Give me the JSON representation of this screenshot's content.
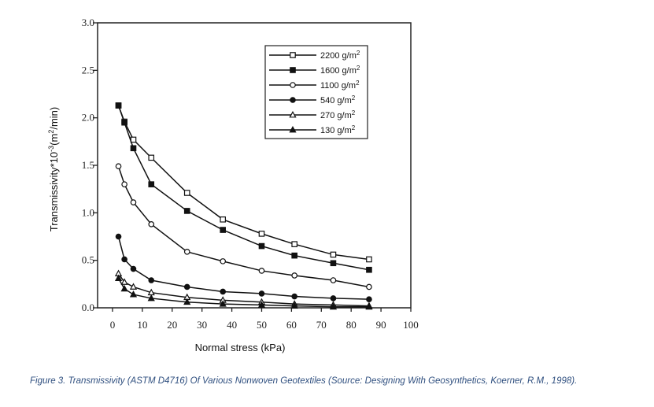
{
  "chart_data": {
    "type": "line",
    "xlabel": "Normal stress (kPa)",
    "ylabel": "Transmissivity*10",
    "ylabel_exp": "-3",
    "ylabel_unit_open": "(m",
    "ylabel_unit_exp": "2",
    "ylabel_unit_close": "/min)",
    "xlim": [
      -5,
      100
    ],
    "ylim": [
      0,
      3.0
    ],
    "x_ticks": [
      0,
      10,
      20,
      30,
      40,
      50,
      60,
      70,
      80,
      90,
      100
    ],
    "y_ticks": [
      "0.0",
      "0.5",
      "1.0",
      "1.5",
      "2.0",
      "2.5",
      "3.0"
    ],
    "grid": false,
    "legend_position": "top-right",
    "series": [
      {
        "name": "2200 g/m",
        "sup": "2",
        "marker": "open-square",
        "x": [
          2,
          4,
          7,
          13,
          25,
          37,
          50,
          61,
          74,
          86
        ],
        "y": [
          2.13,
          1.96,
          1.77,
          1.58,
          1.21,
          0.93,
          0.78,
          0.67,
          0.56,
          0.51
        ]
      },
      {
        "name": "1600 g/m",
        "sup": "2",
        "marker": "filled-square",
        "x": [
          2,
          4,
          7,
          13,
          25,
          37,
          50,
          61,
          74,
          86
        ],
        "y": [
          2.13,
          1.95,
          1.68,
          1.3,
          1.02,
          0.82,
          0.65,
          0.55,
          0.47,
          0.4
        ]
      },
      {
        "name": "1100 g/m",
        "sup": "2",
        "marker": "open-circle",
        "x": [
          2,
          4,
          7,
          13,
          25,
          37,
          50,
          61,
          74,
          86
        ],
        "y": [
          1.49,
          1.3,
          1.11,
          0.88,
          0.59,
          0.49,
          0.39,
          0.34,
          0.29,
          0.22
        ]
      },
      {
        "name": "540 g/m",
        "sup": "2",
        "marker": "filled-circle",
        "x": [
          2,
          4,
          7,
          13,
          25,
          37,
          50,
          61,
          74,
          86
        ],
        "y": [
          0.75,
          0.51,
          0.41,
          0.29,
          0.22,
          0.17,
          0.15,
          0.12,
          0.1,
          0.09
        ]
      },
      {
        "name": "270 g/m",
        "sup": "2",
        "marker": "open-triangle",
        "x": [
          2,
          4,
          7,
          13,
          25,
          37,
          50,
          61,
          74,
          86
        ],
        "y": [
          0.36,
          0.27,
          0.22,
          0.16,
          0.11,
          0.08,
          0.06,
          0.04,
          0.03,
          0.02
        ]
      },
      {
        "name": "130 g/m",
        "sup": "2",
        "marker": "filled-triangle",
        "x": [
          2,
          4,
          7,
          13,
          25,
          37,
          50,
          61,
          74,
          86
        ],
        "y": [
          0.31,
          0.2,
          0.14,
          0.1,
          0.06,
          0.04,
          0.03,
          0.02,
          0.01,
          0.01
        ]
      }
    ]
  },
  "caption": "Figure 3. Transmissivity (ASTM D4716) Of Various Nonwoven Geotextiles (Source: Designing With Geosynthetics, Koerner, R.M., 1998)."
}
